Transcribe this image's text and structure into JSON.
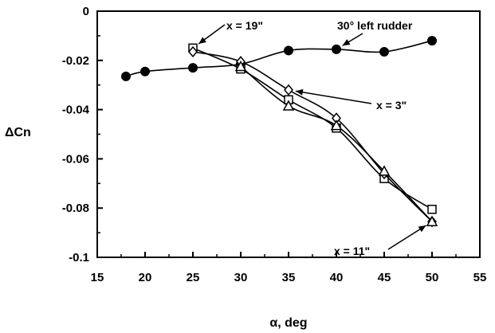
{
  "chart_data": {
    "type": "line",
    "xlabel": "α, deg",
    "ylabel": "ΔCn",
    "xlim": [
      15,
      55
    ],
    "ylim": [
      -0.1,
      0
    ],
    "xticks": [
      {
        "value": 15,
        "label": "15"
      },
      {
        "value": 20,
        "label": "20"
      },
      {
        "value": 25,
        "label": "25"
      },
      {
        "value": 30,
        "label": "30"
      },
      {
        "value": 35,
        "label": "35"
      },
      {
        "value": 40,
        "label": "40"
      },
      {
        "value": 45,
        "label": "45"
      },
      {
        "value": 50,
        "label": "50"
      },
      {
        "value": 55,
        "label": "55"
      }
    ],
    "yticks": [
      {
        "value": 0,
        "label": "0"
      },
      {
        "value": -0.02,
        "label": "-0.02"
      },
      {
        "value": -0.04,
        "label": "-0.04"
      },
      {
        "value": -0.06,
        "label": "-0.06"
      },
      {
        "value": -0.08,
        "label": "-0.08"
      },
      {
        "value": -0.1,
        "label": "-0.1"
      }
    ],
    "grid": false,
    "series": [
      {
        "name": "30° left rudder",
        "marker": "filled-circle",
        "x": [
          18,
          20,
          25,
          30,
          35,
          40,
          45,
          50
        ],
        "y": [
          -0.0265,
          -0.0245,
          -0.023,
          -0.0215,
          -0.016,
          -0.0155,
          -0.0165,
          -0.012
        ]
      },
      {
        "name": "x = 19\"",
        "marker": "open-square",
        "x": [
          25,
          30,
          35,
          40,
          45,
          50
        ],
        "y": [
          -0.015,
          -0.0235,
          -0.036,
          -0.0475,
          -0.068,
          -0.0805
        ]
      },
      {
        "name": "x = 3\"",
        "marker": "open-diamond",
        "x": [
          25,
          30,
          35,
          40,
          45,
          50
        ],
        "y": [
          -0.0165,
          -0.0205,
          -0.032,
          -0.0435,
          -0.066,
          -0.0855
        ]
      },
      {
        "name": "x = 11\"",
        "marker": "open-triangle",
        "x": [
          30,
          35,
          40,
          45,
          50
        ],
        "y": [
          -0.0225,
          -0.0385,
          -0.0465,
          -0.065,
          -0.0855
        ]
      }
    ],
    "annotations": [
      {
        "text": "x = 19\"",
        "target": [
          25,
          -0.015
        ]
      },
      {
        "text": "30° left rudder",
        "target": [
          40,
          -0.0155
        ]
      },
      {
        "text": "x = 3\"",
        "target": [
          35,
          -0.032
        ]
      },
      {
        "text": "x = 11\"",
        "target": [
          50,
          -0.0855
        ]
      }
    ]
  }
}
